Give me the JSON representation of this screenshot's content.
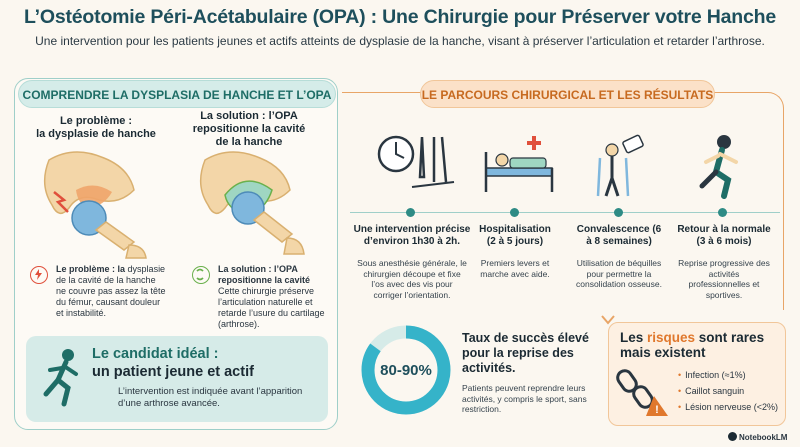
{
  "header": {
    "title": "L’Ostéotomie Péri-Acétabulaire (OPA) : Une Chirurgie pour Préserver votre Hanche",
    "subtitle": "Une intervention pour les patients jeunes et actifs atteints de dysplasie de la hanche, visant à préserver l’articulation et retarder l’arthrose."
  },
  "left": {
    "section_title": "COMPRENDRE LA DYSPLASIA DE HANCHE ET L’OPA",
    "problem": {
      "heading_line1": "Le problème :",
      "heading_line2": "la dysplasie de hanche",
      "label": "Le problème : la",
      "text_rest": "dysplasie de la cavité de la hanche ne couvre pas assez la tête du fémur, causant douleur et instabilité.",
      "icon": "bolt-icon",
      "accent": "#e0503c"
    },
    "solution": {
      "heading_line1": "La solution : l’OPA",
      "heading_line2": "repositionne la cavité",
      "heading_line3": "de la hanche",
      "label": "La solution : l’OPA",
      "label2": "repositionne la cavité",
      "text_rest": "Cette chirurgie préserve l’articulation naturelle et retarde l’usure du cartilage (arthrose).",
      "icon": "reposition-icon",
      "accent": "#6ab04c"
    },
    "candidate": {
      "title_line1": "Le candidat idéal :",
      "title_line2": "un patient jeune et actif",
      "description": "L’intervention est indiquée avant l’apparition d’une arthrose avancée.",
      "icon": "runner-icon"
    }
  },
  "right": {
    "section_title": "LE PARCOURS CHIRURGICAL ET LES RÉSULTATS",
    "steps": [
      {
        "title": "Une intervention précise d’environ 1h30 à 2h.",
        "description": "Sous anesthésie générale, le chirurgien découpe et fixe l’os avec des vis pour corriger l’orientation.",
        "icon": "clock-and-instruments-icon"
      },
      {
        "title": "Hospitalisation (2 à 5 jours)",
        "description": "Premiers levers et marche avec aide.",
        "icon": "hospital-bed-icon"
      },
      {
        "title": "Convalescence (6 à 8 semaines)",
        "description": "Utilisation de béquilles pour permettre la consolidation osseuse.",
        "icon": "crutches-icon"
      },
      {
        "title": "Retour à la normale (3 à 6 mois)",
        "description": "Reprise progressive des activités professionnelles et sportives.",
        "icon": "running-woman-icon"
      }
    ],
    "success": {
      "range": "80-90%",
      "fill_fraction": 0.85,
      "title": "Taux de succès élevé pour la reprise des activités.",
      "description": "Patients peuvent reprendre leurs activités, y compris le sport, sans restriction."
    },
    "risks": {
      "title_pre": "Les ",
      "title_highlight": "risques",
      "title_post": " sont rares",
      "title_line2": "mais existent",
      "items": [
        "Infection (≈1%)",
        "Caillot sanguin",
        "Lésion nerveuse (<2%)"
      ],
      "icons": [
        "broken-chain-icon",
        "warning-icon"
      ]
    }
  },
  "branding": {
    "logo": "NotebookLM"
  },
  "colors": {
    "teal": "#1e6d66",
    "orange": "#e0782d",
    "navy": "#1e4f5c"
  }
}
